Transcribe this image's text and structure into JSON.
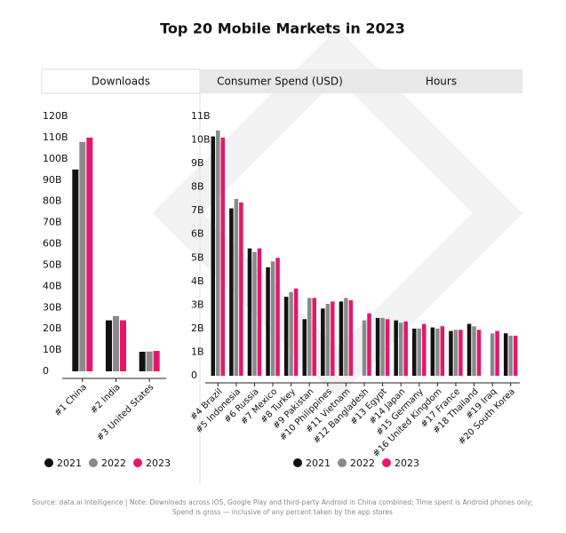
{
  "title": "Top 20 Mobile Markets in 2023",
  "tabs": [
    "Downloads",
    "Consumer Spend (USD)",
    "Hours"
  ],
  "active_tab": 0,
  "source": [
    "Source: data.ai Intelligence | Note: Downloads across iOS, Google Play and third-party Android in China combined; Time spent is Android phones only;",
    "Spend is gross — inclusive of any percent taken by the app stores"
  ],
  "chart_data": [
    {
      "type": "bar",
      "legend": "bottom",
      "categories": [
        "#1 China",
        "#2 India",
        "#3 United States"
      ],
      "series": [
        {
          "name": "2021",
          "color": "#111111",
          "values": [
            95,
            24,
            9.2
          ]
        },
        {
          "name": "2022",
          "color": "#8a8a8a",
          "values": [
            108,
            26,
            9.3
          ]
        },
        {
          "name": "2023",
          "color": "#e5166c",
          "values": [
            110,
            24,
            9.6
          ]
        }
      ],
      "ylim": [
        0,
        120
      ],
      "yticks": [
        0,
        {
          "value": 10,
          "label": "10B"
        },
        {
          "value": 20,
          "label": "20B"
        },
        {
          "value": 30,
          "label": "30B"
        },
        {
          "value": 40,
          "label": "40B"
        },
        {
          "value": 50,
          "label": "50B"
        },
        {
          "value": 60,
          "label": "60B"
        },
        {
          "value": 70,
          "label": "70B"
        },
        {
          "value": 80,
          "label": "80B"
        },
        {
          "value": 90,
          "label": "90B"
        },
        {
          "value": 100,
          "label": "100B"
        },
        {
          "value": 110,
          "label": "110B"
        },
        {
          "value": 120,
          "label": "120B"
        }
      ]
    },
    {
      "type": "bar",
      "legend": "bottom",
      "categories": [
        "#4 Brazil",
        "#5 Indonesia",
        "#6 Russia",
        "#7 Mexico",
        "#8 Turkey",
        "#9 Pakistan",
        "#10 Philippines",
        "#11 Vietnam",
        "#12 Bangladesh",
        "#13 Egypt",
        "#14 Japan",
        "#15 Germany",
        "#16 United Kingdom",
        "#17 France",
        "#18 Thailand",
        "#19 Iraq",
        "#20 South Korea"
      ],
      "series": [
        {
          "name": "2021",
          "color": "#111111",
          "values": [
            10.15,
            7.1,
            5.4,
            4.6,
            3.35,
            2.4,
            2.85,
            3.15,
            null,
            2.45,
            2.35,
            2.0,
            2.05,
            1.9,
            2.2,
            null,
            1.8
          ]
        },
        {
          "name": "2022",
          "color": "#8a8a8a",
          "values": [
            10.4,
            7.5,
            5.25,
            4.85,
            3.55,
            3.3,
            3.05,
            3.3,
            2.35,
            2.45,
            2.25,
            2.0,
            2.0,
            1.95,
            2.1,
            1.8,
            1.7
          ]
        },
        {
          "name": "2023",
          "color": "#e5166c",
          "values": [
            10.1,
            7.35,
            5.4,
            5.0,
            3.7,
            3.3,
            3.15,
            3.2,
            2.65,
            2.4,
            2.3,
            2.2,
            2.1,
            1.95,
            1.95,
            1.9,
            1.7
          ]
        }
      ],
      "ylim": [
        0,
        11
      ],
      "yticks": [
        0,
        {
          "value": 1,
          "label": "1B"
        },
        {
          "value": 2,
          "label": "2B"
        },
        {
          "value": 3,
          "label": "3B"
        },
        {
          "value": 4,
          "label": "4B"
        },
        {
          "value": 5,
          "label": "5B"
        },
        {
          "value": 6,
          "label": "6B"
        },
        {
          "value": 7,
          "label": "7B"
        },
        {
          "value": 8,
          "label": "8B"
        },
        {
          "value": 9,
          "label": "9B"
        },
        {
          "value": 10,
          "label": "10B"
        },
        {
          "value": 11,
          "label": "11B"
        }
      ]
    }
  ]
}
